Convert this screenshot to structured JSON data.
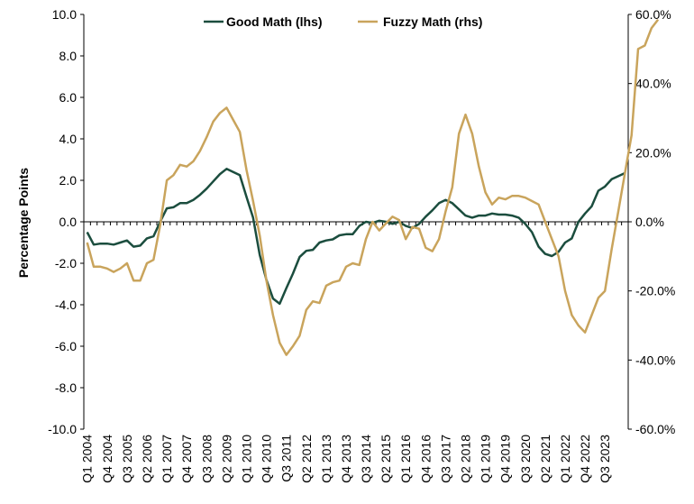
{
  "chart_data": {
    "type": "line",
    "title": "",
    "ylabel": "Percentage Points",
    "legend_position": "top",
    "left_axis": {
      "ylim": [
        -10,
        10
      ],
      "ticks": [
        "10.0",
        "8.0",
        "6.0",
        "4.0",
        "2.0",
        "0.0",
        "-2.0",
        "-4.0",
        "-6.0",
        "-8.0",
        "-10.0"
      ]
    },
    "right_axis": {
      "ylim": [
        -60,
        60
      ],
      "ticks": [
        "60.0%",
        "40.0%",
        "20.0%",
        "0.0%",
        "-20.0%",
        "-40.0%",
        "-60.0%"
      ]
    },
    "x_tick_labels": [
      "Q1 2004",
      "Q4 2004",
      "Q3 2005",
      "Q2 2006",
      "Q1 2007",
      "Q4 2007",
      "Q3 2008",
      "Q2 2009",
      "Q1 2010",
      "Q4 2010",
      "Q3 2011",
      "Q2 2012",
      "Q1 2013",
      "Q4 2013",
      "Q3 2014",
      "Q2 2015",
      "Q1 2016",
      "Q4 2016",
      "Q3 2017",
      "Q2 2018",
      "Q1 2019",
      "Q4 2019",
      "Q3 2020",
      "Q2 2021",
      "Q1 2022",
      "Q4 2022",
      "Q3 2023"
    ],
    "x_start": "Q1 2004",
    "series": [
      {
        "name": "Good Math (lhs)",
        "axis": "left",
        "color": "#1b4d3e",
        "values": [
          -0.5,
          -1.1,
          -1.05,
          -1.05,
          -1.1,
          -1.0,
          -0.9,
          -1.2,
          -1.15,
          -0.8,
          -0.7,
          0.0,
          0.65,
          0.7,
          0.9,
          0.9,
          1.05,
          1.3,
          1.6,
          1.95,
          2.3,
          2.55,
          2.4,
          2.25,
          1.2,
          0.2,
          -1.6,
          -2.8,
          -3.7,
          -3.95,
          -3.2,
          -2.5,
          -1.7,
          -1.4,
          -1.35,
          -1.0,
          -0.9,
          -0.85,
          -0.65,
          -0.6,
          -0.6,
          -0.2,
          0.0,
          -0.05,
          0.05,
          0.0,
          -0.1,
          0.0,
          -0.2,
          -0.3,
          -0.1,
          0.25,
          0.55,
          0.9,
          1.05,
          0.9,
          0.6,
          0.3,
          0.2,
          0.3,
          0.3,
          0.4,
          0.35,
          0.35,
          0.3,
          0.2,
          -0.1,
          -0.5,
          -1.2,
          -1.55,
          -1.65,
          -1.45,
          -1.0,
          -0.8,
          0.0,
          0.4,
          0.75,
          1.5,
          1.7,
          2.05,
          2.2,
          2.35
        ]
      },
      {
        "name": "Fuzzy Math (rhs)",
        "axis": "right",
        "color": "#c9a45c",
        "values": [
          -6,
          -13,
          -13,
          -13.5,
          -14.5,
          -13.5,
          -12,
          -17,
          -17,
          -12,
          -11,
          -1,
          12,
          13.5,
          16.5,
          16,
          17.5,
          20.5,
          24.5,
          29,
          31.5,
          33,
          29.5,
          26,
          15,
          6,
          -4,
          -17,
          -27,
          -35,
          -38.5,
          -36,
          -33,
          -25.5,
          -23,
          -23.5,
          -18.5,
          -17.5,
          -17,
          -13,
          -12,
          -12.5,
          -5,
          0,
          -2.5,
          -0.5,
          1.5,
          0.5,
          -5,
          -1.5,
          -2,
          -7.5,
          -8.5,
          -5,
          3,
          10,
          25.5,
          31,
          25.5,
          16,
          8.5,
          5,
          7,
          6.5,
          7.5,
          7.5,
          7,
          6,
          5,
          0,
          -5,
          -10,
          -20,
          -27,
          -30,
          -32,
          -27,
          -22,
          -20,
          -8,
          3,
          14,
          25,
          50,
          51,
          56,
          58.5
        ]
      }
    ]
  }
}
